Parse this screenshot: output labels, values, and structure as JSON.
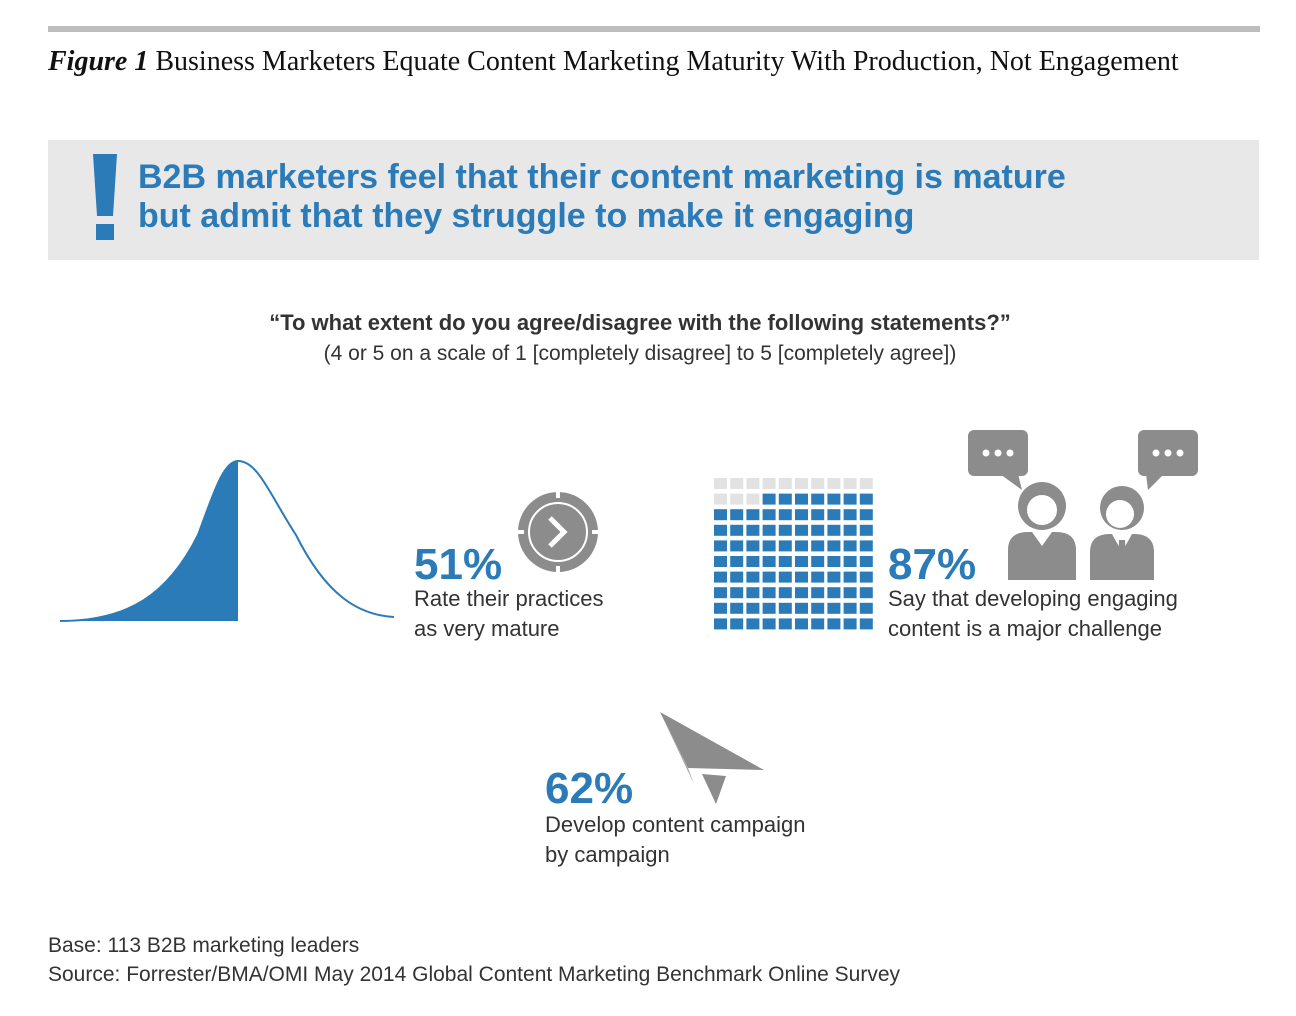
{
  "figure": {
    "label": "Figure 1",
    "title": "Business Marketers Equate Content Marketing Maturity With Production, Not Engagement"
  },
  "banner": {
    "mark": "!",
    "line1": "B2B marketers feel that their content marketing is mature",
    "line2": "but admit that they struggle to make it engaging"
  },
  "survey": {
    "question": "“To what extent do you agree/disagree with the following statements?”",
    "scale_note": "(4 or 5 on a scale of 1 [completely disagree] to 5 [completely agree])"
  },
  "stats": [
    {
      "value": "51%",
      "line1": "Rate their practices",
      "line2": "as very mature",
      "icon": "clock-icon"
    },
    {
      "value": "87%",
      "line1": "Say that developing engaging",
      "line2": "content is a major challenge",
      "icon": "people-speech-icon"
    },
    {
      "value": "62%",
      "line1": "Develop content campaign",
      "line2": "by campaign",
      "icon": "paper-plane-icon"
    }
  ],
  "waffle": {
    "total": 100,
    "filled": 87
  },
  "colors": {
    "accent": "#2a7bb8",
    "gray_icon": "#8c8c8c",
    "banner_bg": "#e8e8e8",
    "light_cell": "#e2e2e2"
  },
  "footer": {
    "base": "Base: 113 B2B marketing leaders",
    "source": "Source: Forrester/BMA/OMI May 2014 Global Content Marketing Benchmark Online Survey"
  }
}
